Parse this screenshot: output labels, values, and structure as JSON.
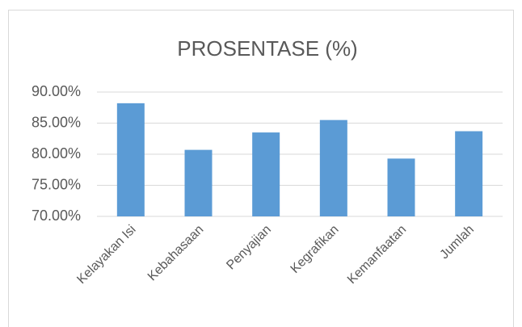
{
  "chart_data": {
    "type": "bar",
    "title": "PROSENTASE (%)",
    "categories": [
      "Kelayakan Isi",
      "Kebahasaan",
      "Penyajian",
      "Kegrafikan",
      "Kemanfaatan",
      "Jumlah"
    ],
    "values": [
      88.2,
      80.7,
      83.5,
      85.5,
      79.3,
      83.7
    ],
    "color": "#5b9bd5",
    "ylim": [
      70,
      90
    ],
    "yticks": [
      {
        "value": 70,
        "label": "70.00%"
      },
      {
        "value": 75,
        "label": "75.00%"
      },
      {
        "value": 80,
        "label": "80.00%"
      },
      {
        "value": 85,
        "label": "85.00%"
      },
      {
        "value": 90,
        "label": "90.00%"
      }
    ],
    "grid": true
  }
}
